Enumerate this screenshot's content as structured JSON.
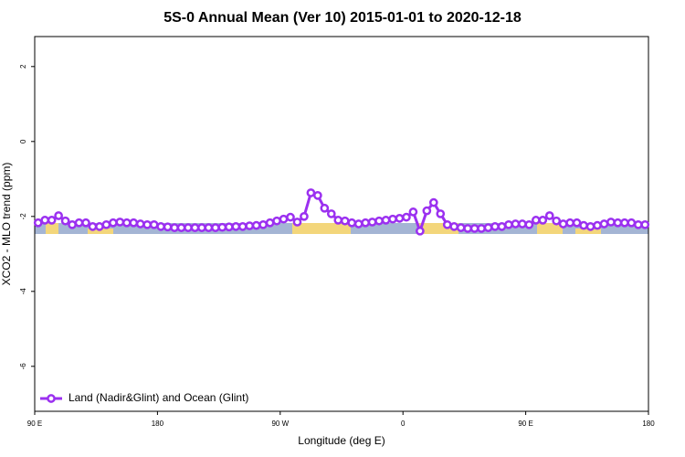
{
  "chart_data": {
    "type": "line",
    "title": "5S-0 Annual Mean (Ver 10)   2015-01-01 to 2020-12-18",
    "x_label": "Longitude (deg E)",
    "y_label": "XCO2 - MLO trend (ppm)",
    "xlim": [
      90,
      540
    ],
    "xticks": [
      {
        "value": 90,
        "label": "90 E"
      },
      {
        "value": 180,
        "label": "180"
      },
      {
        "value": 270,
        "label": "90 W"
      },
      {
        "value": 360,
        "label": "0"
      },
      {
        "value": 450,
        "label": "90 E"
      },
      {
        "value": 540,
        "label": "180"
      }
    ],
    "ylim": [
      -7.2,
      2.8
    ],
    "yticks": [
      2,
      0,
      -2,
      -4,
      -6
    ],
    "legend": "bottom-left",
    "x": [
      92.5,
      97.5,
      102.5,
      107.5,
      112.5,
      117.5,
      122.5,
      127.5,
      132.5,
      137.5,
      142.5,
      147.5,
      152.5,
      157.5,
      162.5,
      167.5,
      172.5,
      177.5,
      182.5,
      187.5,
      192.5,
      197.5,
      202.5,
      207.5,
      212.5,
      217.5,
      222.5,
      227.5,
      232.5,
      237.5,
      242.5,
      247.5,
      252.5,
      257.5,
      262.5,
      267.5,
      272.5,
      277.5,
      282.5,
      287.5,
      292.5,
      297.5,
      302.5,
      307.5,
      312.5,
      317.5,
      322.5,
      327.5,
      332.5,
      337.5,
      342.5,
      347.5,
      352.5,
      357.5,
      362.5,
      367.5,
      372.5,
      377.5,
      382.5,
      387.5,
      392.5,
      397.5,
      402.5,
      407.5,
      412.5,
      417.5,
      422.5,
      427.5,
      432.5,
      437.5,
      442.5,
      447.5,
      452.5,
      457.5,
      462.5,
      467.5,
      472.5,
      477.5,
      482.5,
      487.5,
      492.5,
      497.5,
      502.5,
      507.5,
      512.5,
      517.5,
      522.5,
      527.5,
      532.5,
      537.5
    ],
    "series": [
      {
        "name": "Land (Nadir&Glint) and Ocean (Glint)",
        "color": "#9b30f0",
        "values": [
          -2.17,
          -2.1,
          -2.1,
          -1.98,
          -2.12,
          -2.22,
          -2.17,
          -2.17,
          -2.27,
          -2.27,
          -2.22,
          -2.17,
          -2.15,
          -2.17,
          -2.17,
          -2.2,
          -2.22,
          -2.22,
          -2.27,
          -2.28,
          -2.3,
          -2.3,
          -2.3,
          -2.3,
          -2.3,
          -2.3,
          -2.3,
          -2.29,
          -2.28,
          -2.27,
          -2.27,
          -2.25,
          -2.24,
          -2.22,
          -2.17,
          -2.12,
          -2.07,
          -2.02,
          -2.15,
          -2.0,
          -1.37,
          -1.44,
          -1.78,
          -1.93,
          -2.1,
          -2.12,
          -2.17,
          -2.2,
          -2.17,
          -2.15,
          -2.12,
          -2.1,
          -2.07,
          -2.05,
          -2.02,
          -1.88,
          -2.39,
          -1.85,
          -1.63,
          -1.93,
          -2.22,
          -2.27,
          -2.3,
          -2.32,
          -2.32,
          -2.32,
          -2.3,
          -2.27,
          -2.27,
          -2.22,
          -2.2,
          -2.2,
          -2.22,
          -2.1,
          -2.1,
          -1.98,
          -2.12,
          -2.2,
          -2.17,
          -2.17,
          -2.24,
          -2.27,
          -2.24,
          -2.2,
          -2.15,
          -2.17,
          -2.17,
          -2.17,
          -2.22,
          -2.22
        ]
      }
    ]
  }
}
